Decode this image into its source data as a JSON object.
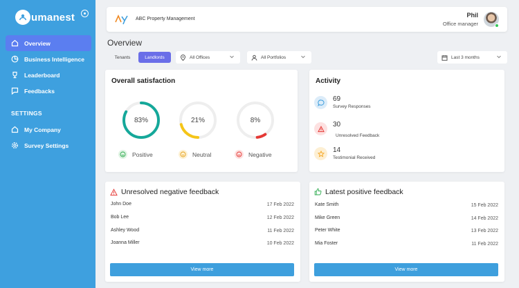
{
  "app": {
    "name": "umanest"
  },
  "sidebar": {
    "items": [
      {
        "label": "Overview",
        "icon": "home-icon",
        "active": true
      },
      {
        "label": "Business Intelligence",
        "icon": "pie-chart-icon"
      },
      {
        "label": "Leaderboard",
        "icon": "trophy-icon"
      },
      {
        "label": "Feedbacks",
        "icon": "chat-icon"
      }
    ],
    "settings_label": "SETTINGS",
    "settings_items": [
      {
        "label": "My Company",
        "icon": "home-icon"
      },
      {
        "label": "Survey Settings",
        "icon": "gear-icon"
      }
    ]
  },
  "header": {
    "company_name": "ABC Property Management",
    "user_name": "Phil",
    "user_role": "Office manager"
  },
  "page": {
    "title": "Overview"
  },
  "filters": {
    "tabs": [
      "Tenants",
      "Landlords"
    ],
    "active_tab": "Landlords",
    "offices": "All Offices",
    "portfolios": "All Portfolios",
    "range": "Last 3 months"
  },
  "satisfaction": {
    "title": "Overall satisfaction",
    "items": [
      {
        "value": "83%",
        "percent": 83,
        "label": "Positive",
        "color": "#15a89a"
      },
      {
        "value": "21%",
        "percent": 21,
        "label": "Neutral",
        "color": "#f5c518"
      },
      {
        "value": "8%",
        "percent": 8,
        "label": "Negative",
        "color": "#e53935"
      }
    ]
  },
  "activity": {
    "title": "Activity",
    "items": [
      {
        "count": "69",
        "label": "Survey Responses",
        "icon": "chat-bubble-icon",
        "color": "#3e9fdd"
      },
      {
        "count": "30",
        "label": "Unresolved Feedback",
        "icon": "warning-icon",
        "color": "#e53935"
      },
      {
        "count": "14",
        "label": "Testimonial Received",
        "icon": "star-icon",
        "color": "#f5a623"
      }
    ]
  },
  "negative_feedback": {
    "title": "Unresolved negative feedback",
    "rows": [
      {
        "name": "John Doe",
        "date": "17 Feb 2022"
      },
      {
        "name": "Bob Lee",
        "date": "12 Feb 2022"
      },
      {
        "name": "Ashley Wood",
        "date": "11 Feb 2022"
      },
      {
        "name": "Joanna Miller",
        "date": "10 Feb 2022"
      }
    ],
    "button": "View more"
  },
  "positive_feedback": {
    "title": "Latest positive feedback",
    "rows": [
      {
        "name": "Kate Smith",
        "date": "15 Feb 2022"
      },
      {
        "name": "Mike Green",
        "date": "14 Feb 2022"
      },
      {
        "name": "Peter White",
        "date": "13 Feb 2022"
      },
      {
        "name": "Mia Foster",
        "date": "11 Feb 2022"
      }
    ],
    "button": "View more"
  }
}
